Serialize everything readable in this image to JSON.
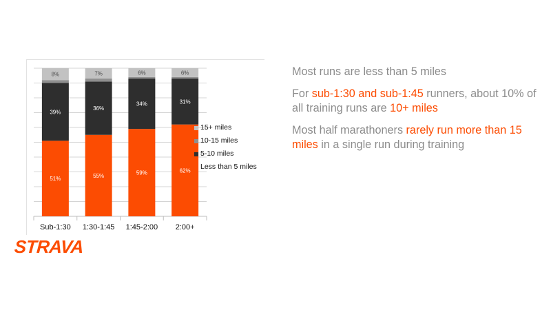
{
  "chart_data": {
    "type": "bar",
    "stacked": true,
    "categories": [
      "Sub-1:30",
      "1:30-1:45",
      "1:45-2:00",
      "2:00+"
    ],
    "series": [
      {
        "name": "Less than 5 miles",
        "color": "#fc4c02",
        "values": [
          51,
          55,
          59,
          62
        ],
        "labels": [
          "51%",
          "55%",
          "59%",
          "62%"
        ]
      },
      {
        "name": "5-10 miles",
        "color": "#2e2e2e",
        "values": [
          39,
          36,
          34,
          31
        ],
        "labels": [
          "39%",
          "36%",
          "34%",
          "31%"
        ]
      },
      {
        "name": "10-15 miles",
        "color": "#8f8f8f",
        "values": [
          2,
          2,
          1,
          1
        ],
        "labels": [
          "",
          "",
          "",
          ""
        ]
      },
      {
        "name": "15+ miles",
        "color": "#c2c2c2",
        "values": [
          8,
          7,
          6,
          6
        ],
        "labels": [
          "8%",
          "7%",
          "6%",
          "6%"
        ]
      }
    ],
    "ylim": [
      0,
      100
    ],
    "grid": true,
    "legend_position": "right",
    "legend_order": [
      "15+ miles",
      "10-15 miles",
      "5-10 miles",
      "Less than 5 miles"
    ]
  },
  "notes": [
    {
      "segments": [
        {
          "text": "Most runs are less than 5 miles",
          "highlight": false
        }
      ]
    },
    {
      "segments": [
        {
          "text": "For ",
          "highlight": false
        },
        {
          "text": "sub-1:30 and sub-1:45",
          "highlight": true
        },
        {
          "text": " runners, about 10% of all training runs are ",
          "highlight": false
        },
        {
          "text": "10+ miles",
          "highlight": true
        }
      ]
    },
    {
      "segments": [
        {
          "text": "Most half marathoners ",
          "highlight": false
        },
        {
          "text": "rarely run more than 15 miles",
          "highlight": true
        },
        {
          "text": " in a single run during training",
          "highlight": false
        }
      ]
    }
  ],
  "brand": {
    "logo_text": "STRAVA",
    "accent_color": "#fc4c02",
    "text_color": "#8c8c8c"
  }
}
